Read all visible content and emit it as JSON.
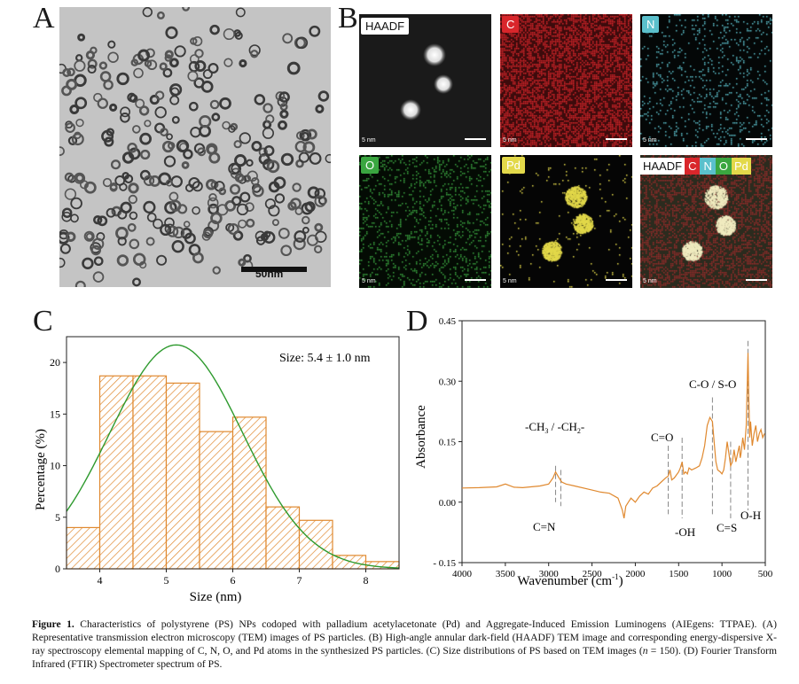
{
  "panels": {
    "a": {
      "letter": "A",
      "scale_label": "50nm"
    },
    "b": {
      "letter": "B",
      "tiles": [
        {
          "label": "HAADF",
          "color": "#ffffff",
          "text_color": "#111111",
          "bg": "#111111"
        },
        {
          "label": "C",
          "color": "#d9262b",
          "text_color": "#ffffff",
          "bg": "#3d0b0c"
        },
        {
          "label": "N",
          "color": "#5bc0cc",
          "text_color": "#ffffff",
          "bg": "#050808"
        },
        {
          "label": "O",
          "color": "#3aa640",
          "text_color": "#ffffff",
          "bg": "#061006"
        },
        {
          "label": "Pd",
          "color": "#e3d94a",
          "text_color": "#ffffff",
          "bg": "#050505"
        }
      ],
      "overlay_labels": [
        "HAADF",
        "C",
        "N",
        "O",
        "Pd"
      ],
      "scale_label": "5 nm"
    },
    "c": {
      "letter": "C",
      "annotation": "Size: 5.4 ± 1.0 nm"
    },
    "d": {
      "letter": "D",
      "annotations": {
        "ch": "-CH",
        "ch3_sub": "3",
        "slash": " / -CH",
        "ch2_sub": "2",
        "dash": "-",
        "co_double": "C=O",
        "co_so": "C-O / S-O",
        "cn": "C=N",
        "oh_minus": "-OH",
        "cs": "C=S",
        "oh": "O-H"
      }
    }
  },
  "chart_data": [
    {
      "type": "bar",
      "title": "",
      "xlabel": "Size (nm)",
      "ylabel": "Percentage (%)",
      "bin_edges": [
        3.5,
        4.0,
        4.5,
        5.0,
        5.5,
        6.0,
        6.5,
        7.0,
        7.5,
        8.0,
        8.5
      ],
      "values": [
        4.0,
        18.7,
        18.7,
        18.0,
        13.3,
        14.7,
        6.0,
        4.7,
        1.3,
        0.7
      ],
      "fit_curve": {
        "type": "gaussian",
        "mean": 5.15,
        "sd": 1.0,
        "peak": 21.7
      },
      "xlim": [
        3.5,
        8.5
      ],
      "ylim": [
        0,
        22.5
      ],
      "xticks": [
        "4",
        "5",
        "6",
        "7",
        "8"
      ],
      "yticks": [
        "0",
        "5",
        "10",
        "15",
        "20"
      ],
      "bar_color": "#e0892f",
      "curve_color": "#2e9a2e"
    },
    {
      "type": "line",
      "title": "",
      "xlabel": "Wavenumber (cm",
      "xlabel_sup": "-1",
      "xlabel_end": ")",
      "ylabel": "Absorbance",
      "xlim": [
        4000,
        500
      ],
      "ylim": [
        -0.15,
        0.45
      ],
      "xticks": [
        "4000",
        "3500",
        "3000",
        "2500",
        "2000",
        "1500",
        "1000",
        "500"
      ],
      "yticks": [
        "- 0.15",
        "0.00",
        "0.15",
        "0.30",
        "0.45"
      ],
      "line_color": "#e0892f",
      "series": [
        {
          "name": "PS",
          "x": [
            4000,
            3800,
            3600,
            3500,
            3400,
            3300,
            3100,
            3000,
            2950,
            2920,
            2880,
            2850,
            2800,
            2700,
            2500,
            2400,
            2300,
            2200,
            2150,
            2130,
            2110,
            2050,
            2000,
            1950,
            1900,
            1850,
            1800,
            1750,
            1700,
            1650,
            1620,
            1600,
            1580,
            1550,
            1500,
            1480,
            1460,
            1440,
            1420,
            1400,
            1380,
            1350,
            1300,
            1260,
            1230,
            1200,
            1170,
            1140,
            1110,
            1090,
            1070,
            1050,
            1020,
            1000,
            980,
            960,
            940,
            920,
            900,
            880,
            860,
            840,
            820,
            800,
            790,
            780,
            760,
            740,
            720,
            700,
            690,
            680,
            670,
            650,
            630,
            610,
            590,
            570,
            550,
            530,
            510
          ],
          "y": [
            0.035,
            0.036,
            0.038,
            0.045,
            0.037,
            0.036,
            0.04,
            0.045,
            0.06,
            0.075,
            0.06,
            0.05,
            0.045,
            0.04,
            0.03,
            0.025,
            0.022,
            0.01,
            -0.02,
            -0.04,
            -0.01,
            0.01,
            0.0,
            0.015,
            0.025,
            0.02,
            0.035,
            0.04,
            0.05,
            0.06,
            0.065,
            0.08,
            0.055,
            0.06,
            0.075,
            0.085,
            0.1,
            0.07,
            0.075,
            0.07,
            0.085,
            0.08,
            0.085,
            0.09,
            0.11,
            0.14,
            0.19,
            0.21,
            0.2,
            0.15,
            0.1,
            0.08,
            0.075,
            0.07,
            0.08,
            0.11,
            0.15,
            0.12,
            0.09,
            0.1,
            0.13,
            0.1,
            0.12,
            0.14,
            0.11,
            0.12,
            0.16,
            0.13,
            0.19,
            0.37,
            0.26,
            0.16,
            0.2,
            0.14,
            0.17,
            0.19,
            0.15,
            0.17,
            0.18,
            0.16,
            0.17
          ]
        }
      ]
    }
  ],
  "caption": {
    "label": "Figure 1.",
    "text": "Characteristics of polystyrene (PS) NPs codoped with palladium acetylacetonate (Pd) and Aggregate-Induced Emission Luminogens (AIEgens: TTPAE). (A) Representative transmission electron microscopy (TEM) images of PS particles. (B) High-angle annular dark-field (HAADF) TEM image and corresponding energy-dispersive X-ray spectroscopy elemental mapping of C, N, O, and Pd atoms in the synthesized PS particles. (C) Size distributions of PS based on TEM images (",
    "n_var": "n",
    "text_end": " = 150). (D) Fourier Transform Infrared (FTIR) Spectrometer spectrum of PS."
  }
}
